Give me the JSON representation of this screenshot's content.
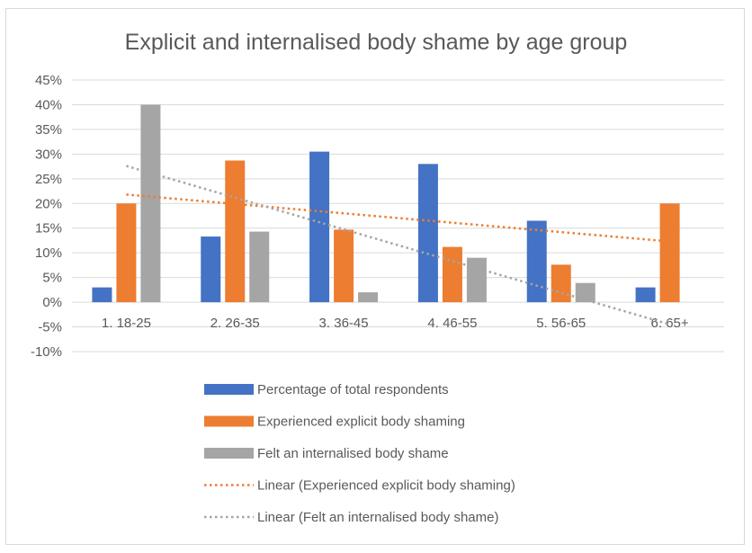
{
  "chart_data": {
    "type": "bar",
    "title": "Explicit and internalised body shame by age group",
    "categories": [
      "1. 18-25",
      "2. 26-35",
      "3. 36-45",
      "4. 46-55",
      "5. 56-65",
      "6. 65+"
    ],
    "series": [
      {
        "name": "Percentage of total respondents",
        "color": "#4472C4",
        "values": [
          3,
          13.3,
          30.5,
          28,
          16.5,
          3
        ]
      },
      {
        "name": "Experienced explicit body shaming",
        "color": "#ED7D31",
        "values": [
          20,
          28.7,
          14.7,
          11.2,
          7.6,
          20
        ]
      },
      {
        "name": "Felt an internalised body shame",
        "color": "#A5A5A5",
        "values": [
          40,
          14.3,
          2,
          9,
          3.9,
          null
        ]
      }
    ],
    "trendlines": [
      {
        "name": "Linear (Experienced explicit body shaming)",
        "color": "#ED7D31",
        "start": 21.8,
        "end": 12.3
      },
      {
        "name": "Linear (Felt an internalised body shame)",
        "color": "#A5A5A5",
        "start": 27.6,
        "end": -4.5
      }
    ],
    "ylim": [
      -10,
      45
    ],
    "yticks": [
      "45%",
      "40%",
      "35%",
      "30%",
      "25%",
      "20%",
      "15%",
      "10%",
      "5%",
      "0%",
      "-5%",
      "-10%"
    ],
    "ytick_values": [
      45,
      40,
      35,
      30,
      25,
      20,
      15,
      10,
      5,
      0,
      -5,
      -10
    ],
    "grid": true,
    "legend_position": "bottom"
  }
}
